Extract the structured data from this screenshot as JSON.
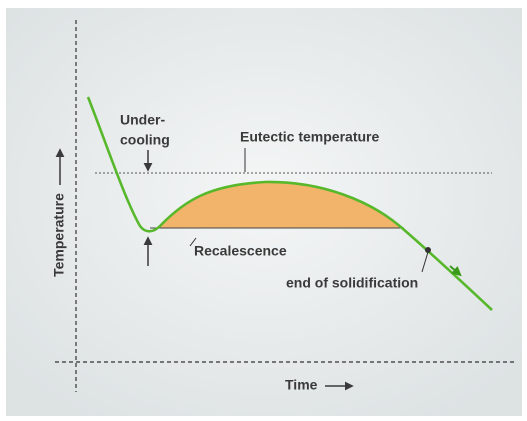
{
  "labels": {
    "undercooling_line1": "Under-",
    "undercooling_line2": "cooling",
    "eutectic": "Eutectic temperature",
    "recalescence": "Recalescence",
    "end": "end of solidification",
    "y_axis": "Temperature",
    "x_axis": "Time"
  }
}
